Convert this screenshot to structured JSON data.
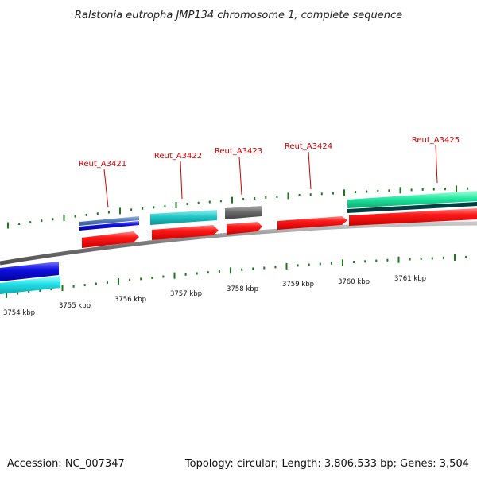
{
  "title": "Ralstonia eutropha JMP134 chromosome 1, complete sequence",
  "footer": {
    "accession": "Accession: NC_007347",
    "summary": "Topology: circular; Length: 3,806,533 bp; Genes: 3,504"
  },
  "colors": {
    "background": "#ffffff",
    "backbone": "#808080",
    "tick": "#1a7a1a",
    "gene_label": "#cc0000",
    "cds": "#ff1a1a",
    "cog_blue": "#1010e0",
    "cog_steelblue": "#5078b8",
    "cog_cyan": "#20c8c8",
    "cog_gray": "#666666",
    "cog_springgreen": "#20e8a0"
  },
  "scale": {
    "unit": "kbp",
    "labels": [
      "3754 kbp",
      "3755 kbp",
      "3756 kbp",
      "3757 kbp",
      "3758 kbp",
      "3759 kbp",
      "3760 kbp",
      "3761 kbp"
    ],
    "major_kbp": [
      3754,
      3755,
      3756,
      3757,
      3758,
      3759,
      3760,
      3761
    ]
  },
  "genes": [
    {
      "name": "Reut_A3421",
      "labeled": true
    },
    {
      "name": "Reut_A3422",
      "labeled": true
    },
    {
      "name": "Reut_A3423",
      "labeled": true
    },
    {
      "name": "Reut_A3424",
      "labeled": true
    },
    {
      "name": "Reut_A3425",
      "labeled": true
    }
  ]
}
